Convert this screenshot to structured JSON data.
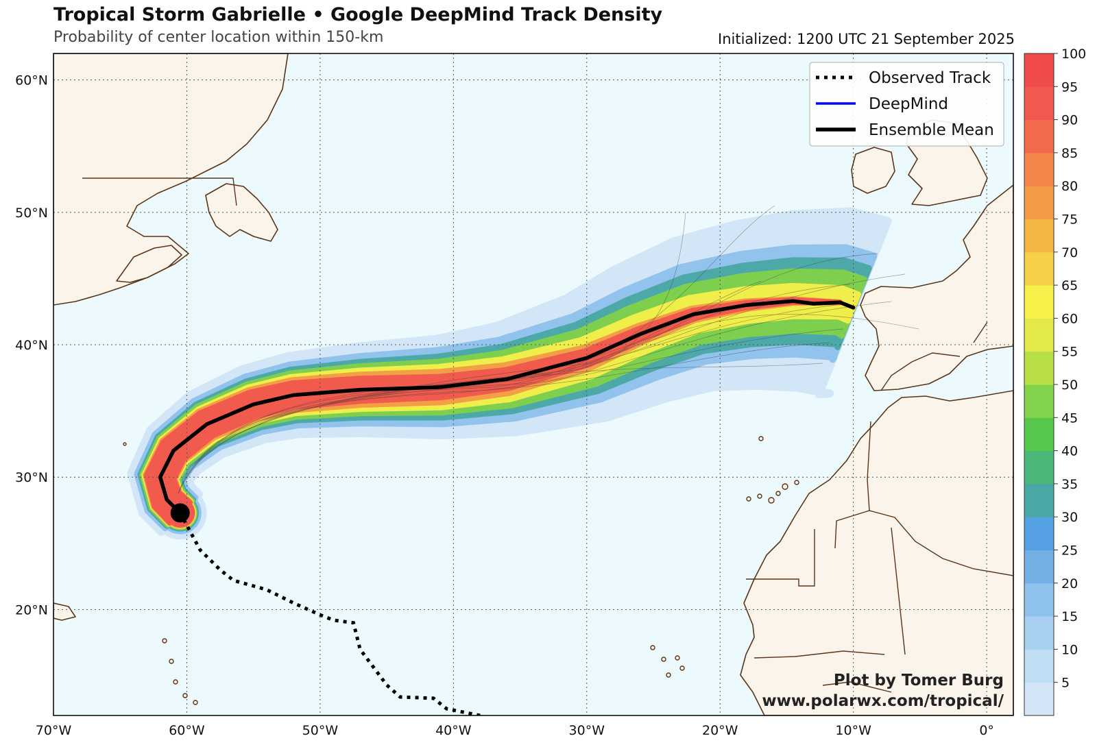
{
  "header": {
    "title": "Tropical Storm Gabrielle • Google DeepMind Track Density",
    "subtitle": "Probability of center location within 150-km",
    "initialized": "Initialized: 1200 UTC 21 September 2025"
  },
  "chart_data": {
    "type": "heatmap",
    "map_extent": {
      "lon": [
        -70,
        2
      ],
      "lat": [
        12,
        62
      ]
    },
    "x_ticks": [
      "70°W",
      "60°W",
      "50°W",
      "40°W",
      "30°W",
      "20°W",
      "10°W",
      "0°"
    ],
    "x_tick_values": [
      -70,
      -60,
      -50,
      -40,
      -30,
      -20,
      -10,
      0
    ],
    "y_ticks": [
      "20°N",
      "30°N",
      "40°N",
      "50°N",
      "60°N"
    ],
    "y_tick_values": [
      20,
      30,
      40,
      50,
      60
    ],
    "grid": true,
    "colorbar": {
      "ticks": [
        "5",
        "10",
        "15",
        "20",
        "25",
        "30",
        "35",
        "40",
        "45",
        "50",
        "55",
        "60",
        "65",
        "70",
        "75",
        "80",
        "85",
        "90",
        "95",
        "100"
      ],
      "colors": [
        "#d2e6f7",
        "#bfddf3",
        "#a8d0f0",
        "#8fc2ec",
        "#72b0e6",
        "#54a0e2",
        "#4aa8a4",
        "#4bb77a",
        "#57c64d",
        "#82d24b",
        "#b8df45",
        "#e2e94a",
        "#f7f04a",
        "#f6d147",
        "#f4b544",
        "#f39b45",
        "#f3844a",
        "#f36a4c",
        "#f1584f",
        "#ef4b4b"
      ]
    },
    "legend": {
      "placement": "top-right",
      "entries": [
        {
          "label": "Observed Track",
          "style": "dotted",
          "color": "#000000"
        },
        {
          "label": "DeepMind",
          "style": "solid",
          "color": "#0000ff"
        },
        {
          "label": "Ensemble Mean",
          "style": "solid-thick",
          "color": "#000000"
        }
      ]
    },
    "observed_track": [
      [
        -38.0,
        12.0
      ],
      [
        -40.5,
        12.5
      ],
      [
        -41.5,
        13.3
      ],
      [
        -44.0,
        13.4
      ],
      [
        -45.0,
        14.3
      ],
      [
        -47.0,
        17.0
      ],
      [
        -47.5,
        19.0
      ],
      [
        -49.0,
        19.2
      ],
      [
        -50.0,
        19.6
      ],
      [
        -52.0,
        20.5
      ],
      [
        -54.0,
        21.5
      ],
      [
        -56.5,
        22.2
      ],
      [
        -57.5,
        23.0
      ],
      [
        -59.0,
        24.5
      ],
      [
        -60.5,
        27.3
      ]
    ],
    "ensemble_mean": [
      [
        -60.5,
        27.3
      ],
      [
        -61.5,
        28.3
      ],
      [
        -62.0,
        30.0
      ],
      [
        -61.0,
        32.0
      ],
      [
        -58.5,
        34.0
      ],
      [
        -55.0,
        35.5
      ],
      [
        -52.0,
        36.2
      ],
      [
        -47.0,
        36.6
      ],
      [
        -41.0,
        36.8
      ],
      [
        -36.0,
        37.4
      ],
      [
        -30.0,
        39.0
      ],
      [
        -26.0,
        40.8
      ],
      [
        -22.0,
        42.3
      ],
      [
        -18.0,
        43.0
      ],
      [
        -14.5,
        43.3
      ],
      [
        -13.0,
        43.1
      ],
      [
        -11.0,
        43.2
      ],
      [
        -10.0,
        42.8
      ]
    ],
    "density_band": {
      "center": [
        [
          -60.5,
          27.3
        ],
        [
          -61.5,
          28.3
        ],
        [
          -62.0,
          30.0
        ],
        [
          -61.0,
          32.0
        ],
        [
          -58.5,
          34.0
        ],
        [
          -55.0,
          35.5
        ],
        [
          -52.0,
          36.2
        ],
        [
          -47.0,
          36.6
        ],
        [
          -41.0,
          36.8
        ],
        [
          -36.0,
          37.4
        ],
        [
          -30.0,
          39.0
        ],
        [
          -26.0,
          40.8
        ],
        [
          -22.0,
          42.3
        ],
        [
          -18.0,
          43.0
        ],
        [
          -14.5,
          43.3
        ],
        [
          -11.0,
          43.2
        ],
        [
          -10.0,
          42.8
        ]
      ],
      "levels": [
        {
          "value": 5,
          "half_width_deg": [
            2.0,
            3.8,
            7.0
          ]
        },
        {
          "value": 20,
          "half_width_deg": [
            1.6,
            2.9,
            4.2
          ]
        },
        {
          "value": 35,
          "half_width_deg": [
            1.4,
            2.4,
            3.2
          ]
        },
        {
          "value": 50,
          "half_width_deg": [
            1.3,
            2.0,
            2.3
          ]
        },
        {
          "value": 65,
          "half_width_deg": [
            1.2,
            1.6,
            1.1
          ]
        },
        {
          "value": 80,
          "half_width_deg": [
            1.15,
            1.2,
            0.0
          ]
        },
        {
          "value": 95,
          "half_width_deg": [
            1.1,
            0.8,
            0.0
          ]
        }
      ]
    },
    "storm_position": {
      "lon": -60.5,
      "lat": 27.3
    }
  },
  "credit": {
    "line1": "Plot by Tomer Burg",
    "line2": "www.polarwx.com/tropical/"
  },
  "colors": {
    "ocean": "#ecf9fd",
    "land": "#fbf4ea",
    "coast": "#5a3418",
    "grid": "#333333"
  }
}
